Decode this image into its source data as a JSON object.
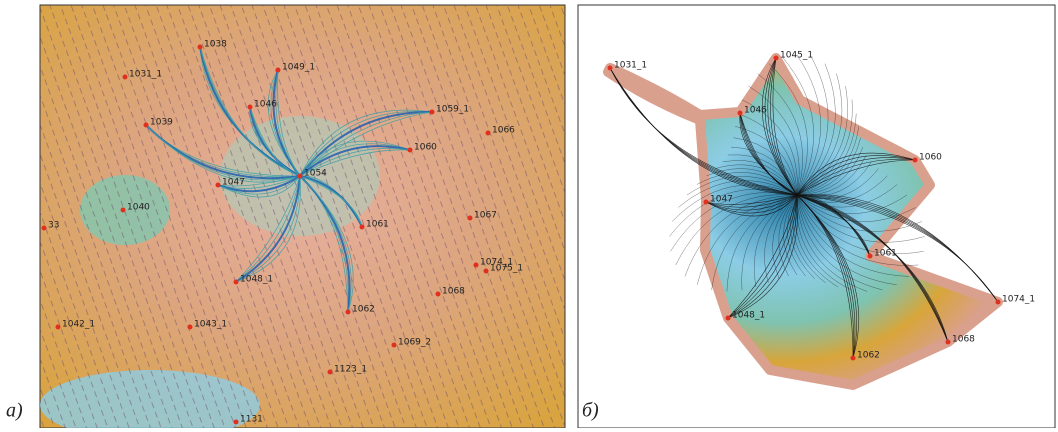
{
  "panels": [
    {
      "caption": "а)",
      "points": [
        "1038",
        "1031_1",
        "1049_1",
        "1046",
        "1039",
        "1059_1",
        "1066",
        "1060",
        "1054",
        "1047",
        "1040",
        "33",
        "1067",
        "1061",
        "1074_1",
        "1075_1",
        "1048_1",
        "1068",
        "1062",
        "1042_1",
        "1043_1",
        "1069_2",
        "1123_1",
        "1131"
      ]
    },
    {
      "caption": "б)",
      "points": [
        "1031_1",
        "1045_1",
        "1046",
        "1060",
        "1047",
        "1061",
        "1074_1",
        "1048_1",
        "1068",
        "1062"
      ]
    }
  ]
}
